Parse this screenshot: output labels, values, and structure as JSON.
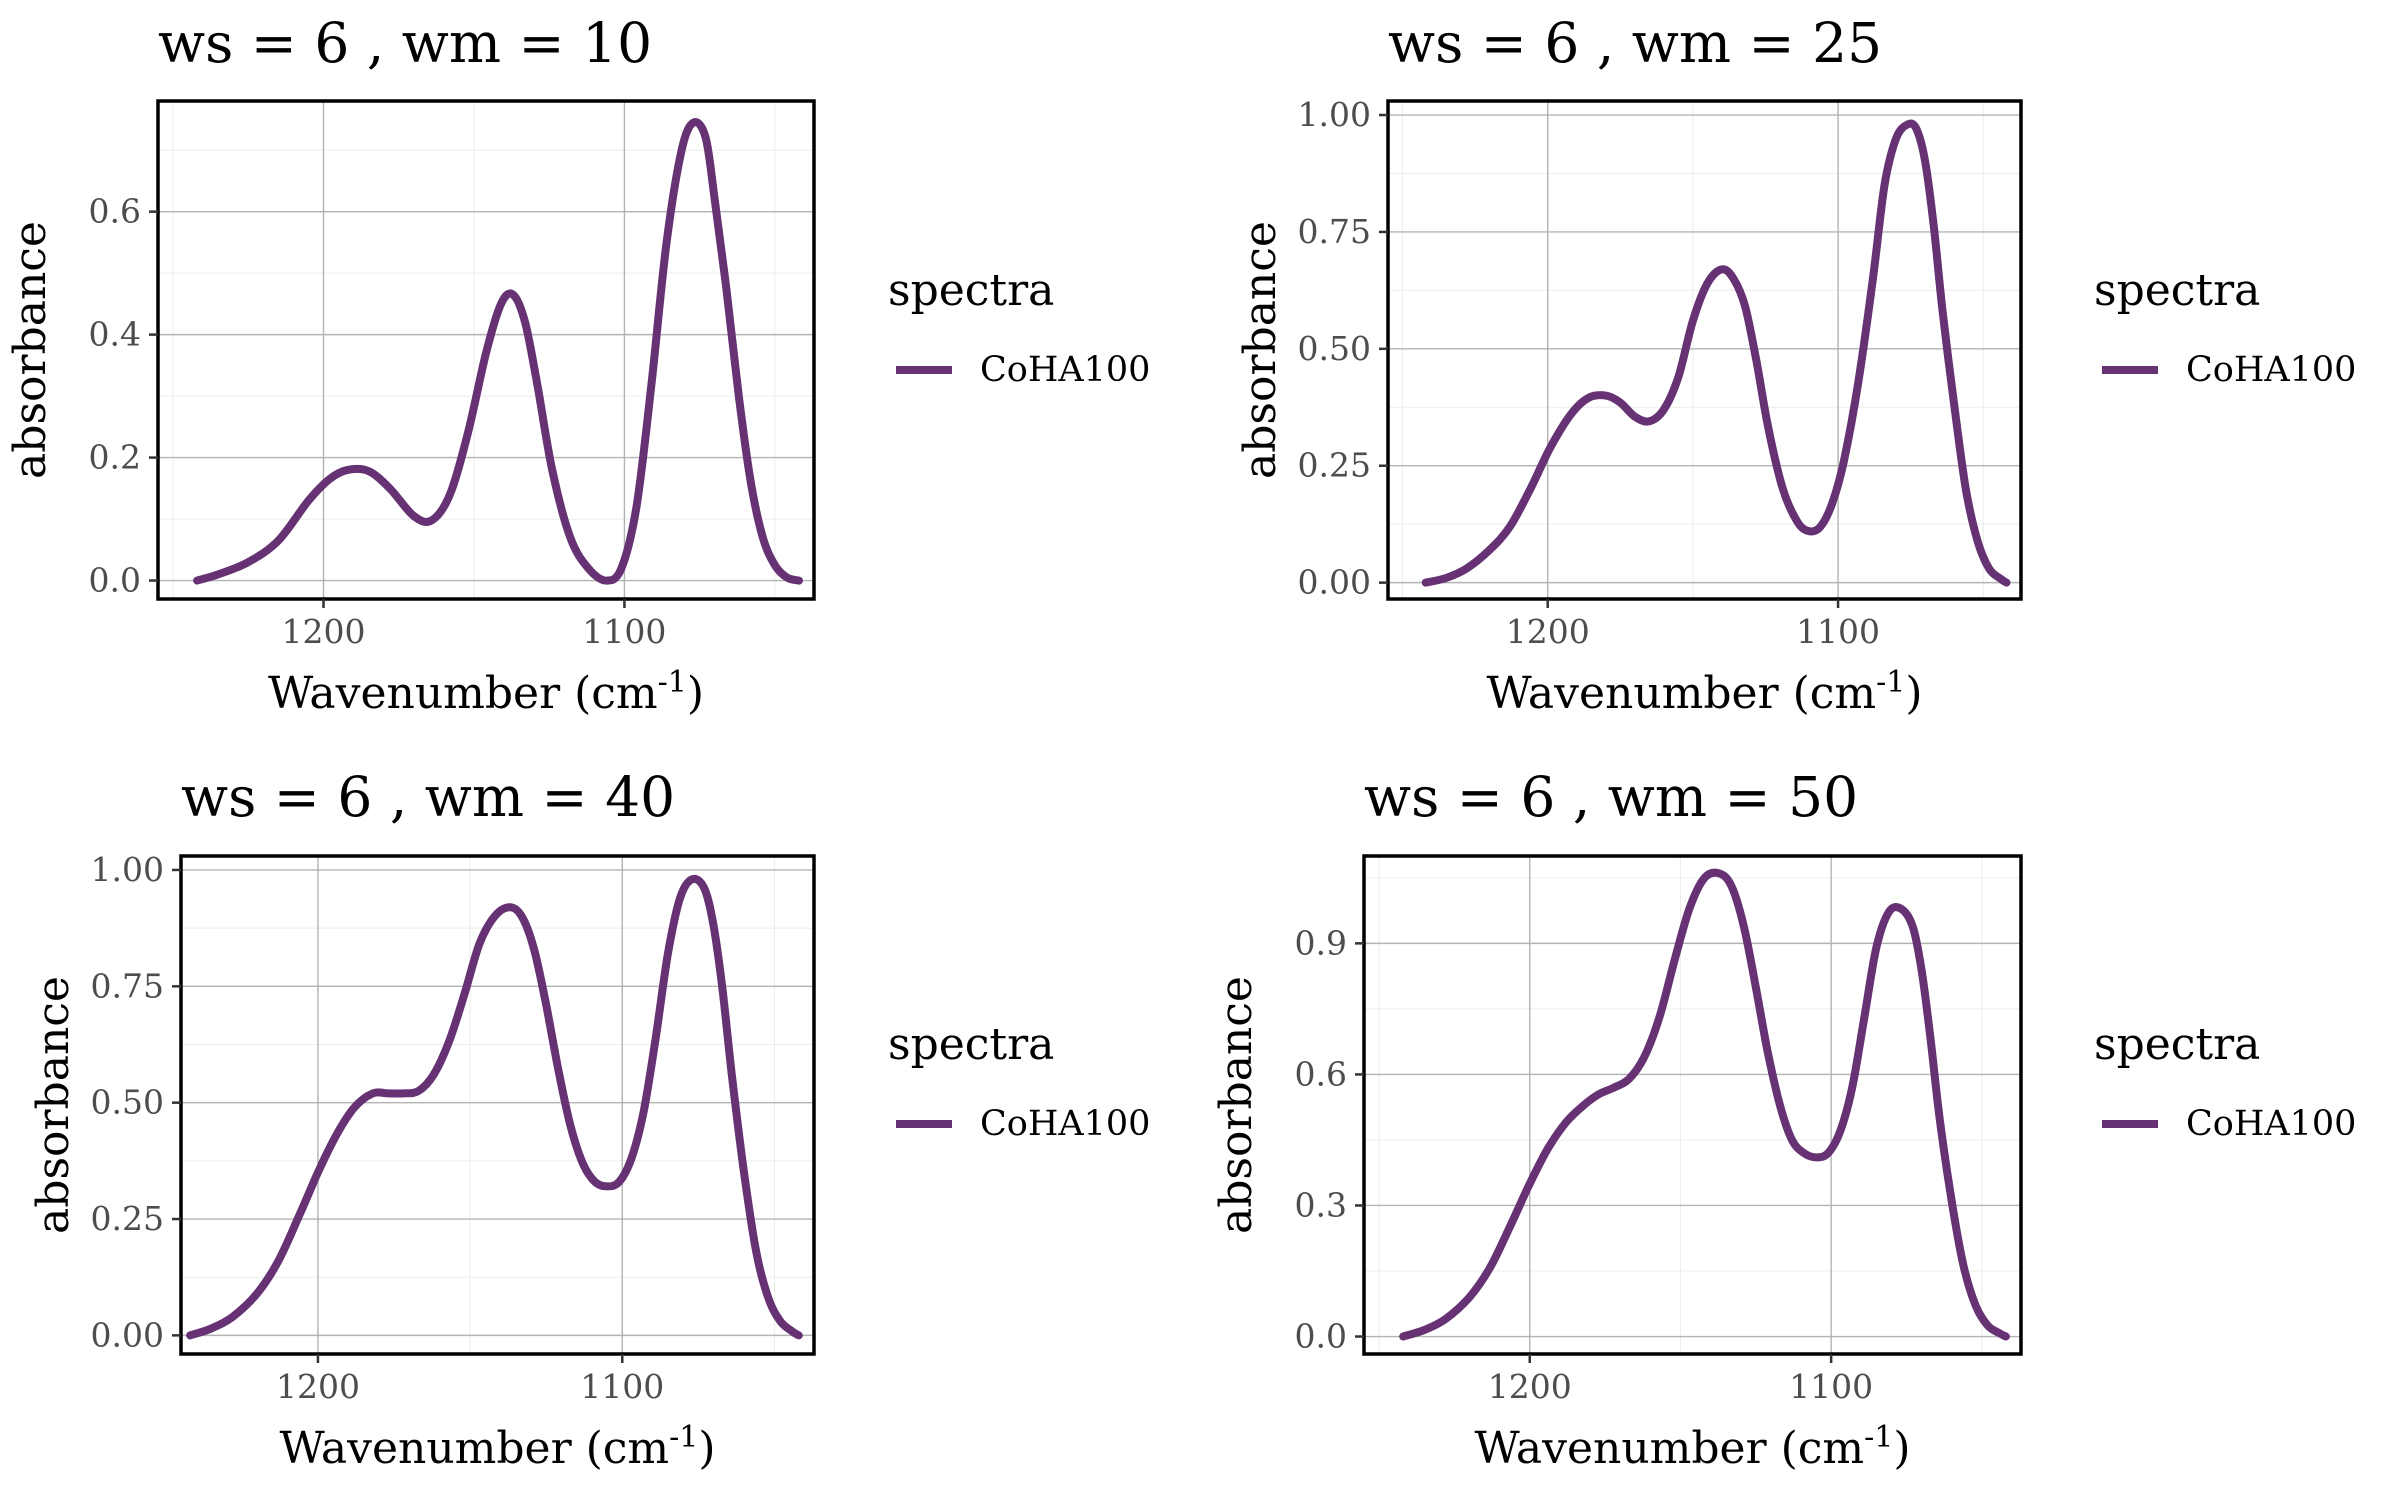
{
  "figure": {
    "color_series": "#663274",
    "color_grid_major": "#b3b3b3",
    "color_grid_minor": "#ececec"
  },
  "chart_data": [
    {
      "type": "line",
      "title": "ws = 6 , wm = 10",
      "xlabel": "Wavenumber (cm",
      "xlabel_sup": "-1",
      "xlabel_close": ")",
      "ylabel": "absorbance",
      "xlim": [
        1255,
        1037
      ],
      "x_reversed": true,
      "ylim": [
        -0.03,
        0.78
      ],
      "x_ticks": [
        1200,
        1100
      ],
      "y_ticks": [
        0.0,
        0.2,
        0.4,
        0.6
      ],
      "y_tick_labels": [
        "0.0",
        "0.2",
        "0.4",
        "0.6"
      ],
      "legend": {
        "title": "spectra",
        "position": "right",
        "entries": [
          "CoHA100"
        ]
      },
      "grid": true,
      "series": [
        {
          "name": "CoHA100",
          "x": [
            1242,
            1235,
            1225,
            1215,
            1205,
            1198,
            1192,
            1185,
            1178,
            1170,
            1164,
            1158,
            1152,
            1146,
            1141,
            1137,
            1133,
            1129,
            1124,
            1118,
            1112,
            1106,
            1101,
            1096,
            1091,
            1086,
            1081,
            1077,
            1073,
            1070,
            1066,
            1062,
            1058,
            1054,
            1050,
            1046,
            1042
          ],
          "y": [
            0.0,
            0.01,
            0.03,
            0.065,
            0.13,
            0.165,
            0.18,
            0.178,
            0.15,
            0.105,
            0.098,
            0.14,
            0.24,
            0.37,
            0.45,
            0.465,
            0.42,
            0.32,
            0.18,
            0.07,
            0.02,
            0.0,
            0.02,
            0.12,
            0.32,
            0.55,
            0.7,
            0.745,
            0.72,
            0.62,
            0.47,
            0.3,
            0.16,
            0.07,
            0.025,
            0.005,
            0.0
          ]
        }
      ]
    },
    {
      "type": "line",
      "title": "ws = 6 , wm = 25",
      "xlabel": "Wavenumber (cm",
      "xlabel_sup": "-1",
      "xlabel_close": ")",
      "ylabel": "absorbance",
      "xlim": [
        1255,
        1037
      ],
      "x_reversed": true,
      "ylim": [
        -0.035,
        1.03
      ],
      "x_ticks": [
        1200,
        1100
      ],
      "y_ticks": [
        0.0,
        0.25,
        0.5,
        0.75,
        1.0
      ],
      "y_tick_labels": [
        "0.00",
        "0.25",
        "0.50",
        "0.75",
        "1.00"
      ],
      "legend": {
        "title": "spectra",
        "position": "right",
        "entries": [
          "CoHA100"
        ]
      },
      "grid": true,
      "series": [
        {
          "name": "CoHA100",
          "x": [
            1242,
            1235,
            1228,
            1220,
            1213,
            1206,
            1199,
            1192,
            1186,
            1180,
            1175,
            1170,
            1165,
            1160,
            1155,
            1150,
            1145,
            1140,
            1136,
            1132,
            1128,
            1124,
            1119,
            1114,
            1110,
            1106,
            1102,
            1098,
            1093,
            1088,
            1084,
            1080,
            1076,
            1073,
            1070,
            1067,
            1064,
            1060,
            1056,
            1052,
            1048,
            1044,
            1042
          ],
          "y": [
            0.0,
            0.01,
            0.03,
            0.07,
            0.12,
            0.2,
            0.29,
            0.36,
            0.395,
            0.4,
            0.385,
            0.355,
            0.345,
            0.37,
            0.44,
            0.56,
            0.64,
            0.67,
            0.65,
            0.59,
            0.47,
            0.33,
            0.2,
            0.13,
            0.11,
            0.12,
            0.17,
            0.26,
            0.43,
            0.65,
            0.85,
            0.95,
            0.98,
            0.97,
            0.9,
            0.76,
            0.58,
            0.38,
            0.2,
            0.09,
            0.03,
            0.008,
            0.0
          ]
        }
      ]
    },
    {
      "type": "line",
      "title": "ws = 6 , wm = 40",
      "xlabel": "Wavenumber (cm",
      "xlabel_sup": "-1",
      "xlabel_close": ")",
      "ylabel": "absorbance",
      "xlim": [
        1245,
        1037
      ],
      "x_reversed": true,
      "ylim": [
        -0.04,
        1.03
      ],
      "x_ticks": [
        1200,
        1100
      ],
      "y_ticks": [
        0.0,
        0.25,
        0.5,
        0.75,
        1.0
      ],
      "y_tick_labels": [
        "0.00",
        "0.25",
        "0.50",
        "0.75",
        "1.00"
      ],
      "legend": {
        "title": "spectra",
        "position": "right",
        "entries": [
          "CoHA100"
        ]
      },
      "grid": true,
      "series": [
        {
          "name": "CoHA100",
          "x": [
            1242,
            1235,
            1228,
            1220,
            1213,
            1206,
            1200,
            1194,
            1188,
            1182,
            1177,
            1172,
            1167,
            1162,
            1157,
            1152,
            1147,
            1142,
            1137,
            1133,
            1129,
            1125,
            1121,
            1117,
            1113,
            1109,
            1105,
            1101,
            1097,
            1093,
            1089,
            1085,
            1081,
            1077,
            1073,
            1070,
            1067,
            1064,
            1060,
            1056,
            1052,
            1048,
            1044,
            1042
          ],
          "y": [
            0.0,
            0.015,
            0.04,
            0.09,
            0.16,
            0.26,
            0.35,
            0.43,
            0.49,
            0.52,
            0.52,
            0.52,
            0.525,
            0.56,
            0.63,
            0.73,
            0.84,
            0.9,
            0.92,
            0.9,
            0.83,
            0.71,
            0.57,
            0.45,
            0.37,
            0.33,
            0.32,
            0.33,
            0.38,
            0.48,
            0.64,
            0.82,
            0.94,
            0.98,
            0.96,
            0.88,
            0.74,
            0.56,
            0.35,
            0.18,
            0.08,
            0.03,
            0.008,
            0.0
          ]
        }
      ]
    },
    {
      "type": "line",
      "title": "ws = 6 , wm = 50",
      "xlabel": "Wavenumber (cm",
      "xlabel_sup": "-1",
      "xlabel_close": ")",
      "ylabel": "absorbance",
      "xlim": [
        1255,
        1037
      ],
      "x_reversed": true,
      "ylim": [
        -0.04,
        1.1
      ],
      "x_ticks": [
        1200,
        1100
      ],
      "y_ticks": [
        0.0,
        0.3,
        0.6,
        0.9
      ],
      "y_tick_labels": [
        "0.0",
        "0.3",
        "0.6",
        "0.9"
      ],
      "legend": {
        "title": "spectra",
        "position": "right",
        "entries": [
          "CoHA100"
        ]
      },
      "grid": true,
      "series": [
        {
          "name": "CoHA100",
          "x": [
            1242,
            1235,
            1228,
            1220,
            1213,
            1206,
            1200,
            1194,
            1188,
            1182,
            1177,
            1172,
            1167,
            1162,
            1157,
            1152,
            1147,
            1142,
            1137,
            1133,
            1129,
            1125,
            1121,
            1117,
            1113,
            1109,
            1105,
            1101,
            1097,
            1093,
            1089,
            1085,
            1081,
            1077,
            1073,
            1070,
            1067,
            1064,
            1060,
            1056,
            1052,
            1048,
            1044,
            1042
          ],
          "y": [
            0.0,
            0.015,
            0.04,
            0.09,
            0.16,
            0.26,
            0.35,
            0.43,
            0.49,
            0.53,
            0.555,
            0.57,
            0.59,
            0.64,
            0.73,
            0.86,
            0.98,
            1.05,
            1.06,
            1.03,
            0.94,
            0.8,
            0.65,
            0.53,
            0.45,
            0.42,
            0.41,
            0.42,
            0.47,
            0.57,
            0.73,
            0.89,
            0.97,
            0.98,
            0.94,
            0.84,
            0.68,
            0.5,
            0.31,
            0.16,
            0.07,
            0.025,
            0.007,
            0.0
          ]
        }
      ]
    }
  ]
}
